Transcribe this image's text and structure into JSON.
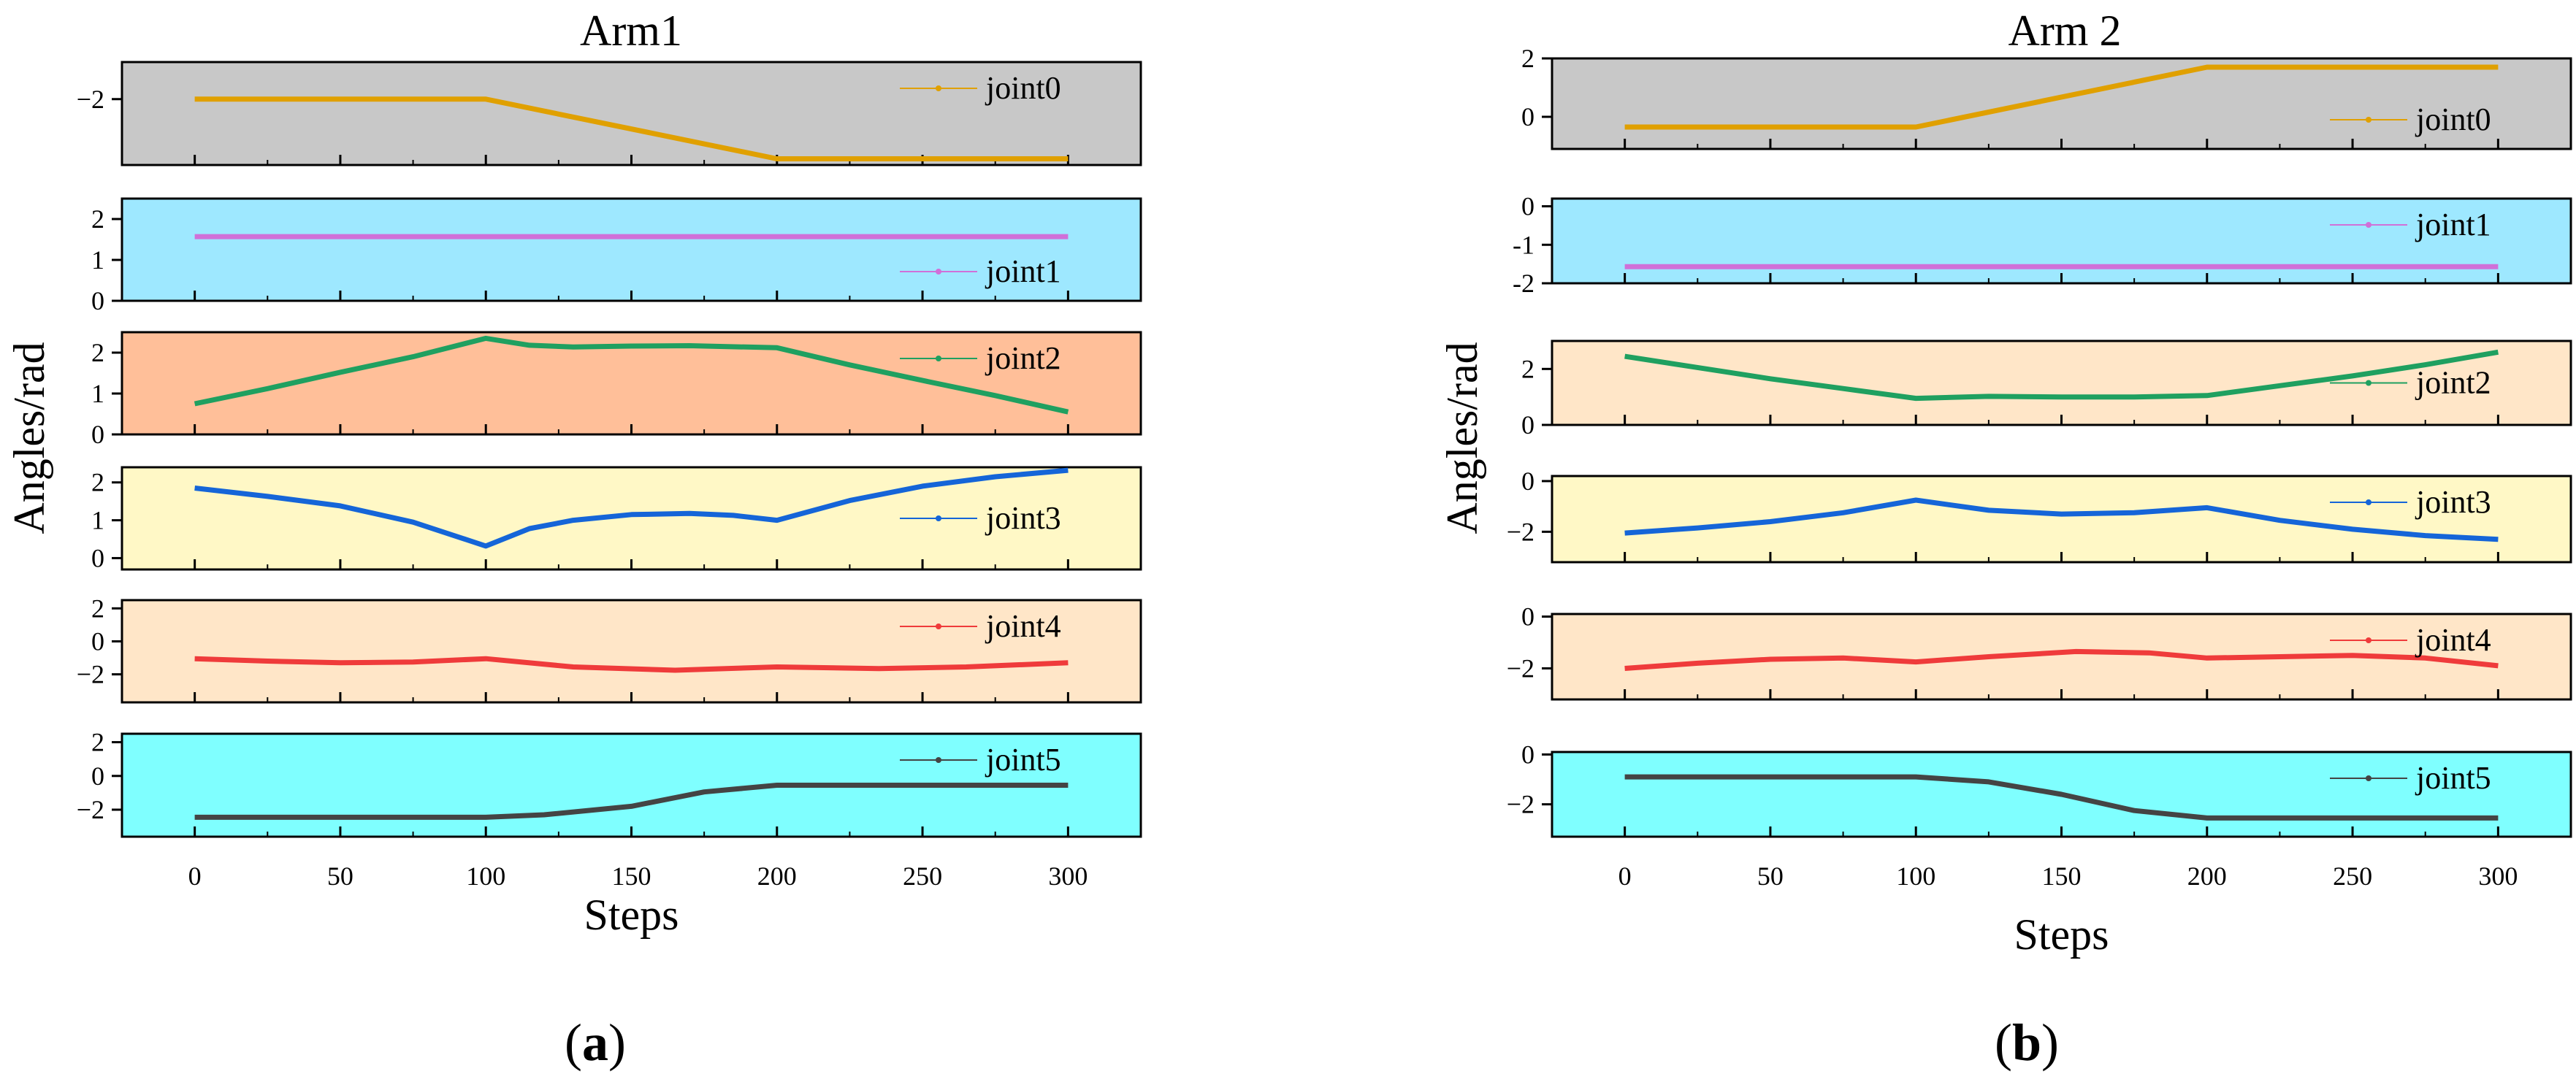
{
  "figure": {
    "captions": [
      {
        "open": "(",
        "letter": "a",
        "close": ")"
      },
      {
        "open": "(",
        "letter": "b",
        "close": ")"
      }
    ],
    "ylabel": "Angles/rad",
    "xlabel": "Steps"
  },
  "chart_data": [
    {
      "type": "line",
      "title": "Arm1",
      "xlabel": "Steps",
      "ylabel": "Angles/rad",
      "xlim": [
        -25,
        325
      ],
      "xticks": [
        0,
        50,
        100,
        150,
        200,
        250,
        300
      ],
      "xtick_labels": [
        "0",
        "50",
        "100",
        "150",
        "200",
        "250",
        "300"
      ],
      "subplots": [
        {
          "joint": "joint0",
          "color": "#E0A000",
          "bg": "#C8C8C8",
          "ylim": [
            -3.6,
            -1.1
          ],
          "yticks": [
            -2
          ],
          "ytick_labels": [
            "−2"
          ],
          "legend": "top-right",
          "x": [
            0,
            100,
            200,
            300
          ],
          "y": [
            -2.0,
            -2.0,
            -3.45,
            -3.45
          ]
        },
        {
          "joint": "joint1",
          "color": "#D070D8",
          "bg": "#9EE8FF",
          "ylim": [
            0,
            2.5
          ],
          "yticks": [
            0,
            1,
            2
          ],
          "ytick_labels": [
            "0",
            "1",
            "2"
          ],
          "legend": "bottom-right",
          "x": [
            0,
            300
          ],
          "y": [
            1.57,
            1.57
          ]
        },
        {
          "joint": "joint2",
          "color": "#1FA060",
          "bg": "#FFBF99",
          "ylim": [
            0,
            2.5
          ],
          "yticks": [
            0,
            1,
            2
          ],
          "ytick_labels": [
            "0",
            "1",
            "2"
          ],
          "legend": "top-right",
          "x": [
            0,
            25,
            50,
            75,
            100,
            115,
            130,
            150,
            170,
            200,
            225,
            250,
            275,
            300
          ],
          "y": [
            0.75,
            1.12,
            1.52,
            1.9,
            2.35,
            2.18,
            2.14,
            2.16,
            2.17,
            2.12,
            1.7,
            1.32,
            0.95,
            0.55
          ]
        },
        {
          "joint": "joint3",
          "color": "#1565D8",
          "bg": "#FFF8C6",
          "ylim": [
            -0.3,
            2.4
          ],
          "yticks": [
            0,
            1,
            2
          ],
          "ytick_labels": [
            "0",
            "1",
            "2"
          ],
          "legend": "right",
          "x": [
            0,
            25,
            50,
            75,
            100,
            115,
            130,
            150,
            170,
            185,
            200,
            225,
            250,
            275,
            300
          ],
          "y": [
            1.85,
            1.63,
            1.38,
            0.95,
            0.32,
            0.78,
            1.0,
            1.15,
            1.18,
            1.13,
            1.0,
            1.52,
            1.9,
            2.15,
            2.32
          ]
        },
        {
          "joint": "joint4",
          "color": "#EF3B3B",
          "bg": "#FFE6C8",
          "ylim": [
            -3.7,
            2.5
          ],
          "yticks": [
            -2,
            0,
            2
          ],
          "ytick_labels": [
            "−2",
            "0",
            "2"
          ],
          "legend": "top-right",
          "x": [
            0,
            25,
            50,
            75,
            100,
            130,
            165,
            200,
            235,
            265,
            300
          ],
          "y": [
            -1.05,
            -1.2,
            -1.3,
            -1.25,
            -1.05,
            -1.55,
            -1.75,
            -1.55,
            -1.65,
            -1.55,
            -1.3
          ]
        },
        {
          "joint": "joint5",
          "color": "#444444",
          "bg": "#7FFFFF",
          "ylim": [
            -3.6,
            2.5
          ],
          "yticks": [
            -2,
            0,
            2
          ],
          "ytick_labels": [
            "−2",
            "0",
            "2"
          ],
          "legend": "top-right",
          "x": [
            0,
            100,
            120,
            150,
            175,
            200,
            300
          ],
          "y": [
            -2.45,
            -2.45,
            -2.3,
            -1.8,
            -0.95,
            -0.55,
            -0.55
          ]
        }
      ]
    },
    {
      "type": "line",
      "title": "Arm 2",
      "xlabel": "Steps",
      "ylabel": "Angles/rad",
      "xlim": [
        -25,
        325
      ],
      "xticks": [
        0,
        50,
        100,
        150,
        200,
        250,
        300
      ],
      "xtick_labels": [
        "0",
        "50",
        "100",
        "150",
        "200",
        "250",
        "300"
      ],
      "subplots": [
        {
          "joint": "joint0",
          "color": "#E0A000",
          "bg": "#C8C8C8",
          "ylim": [
            -1.1,
            2.0
          ],
          "yticks": [
            0,
            2
          ],
          "ytick_labels": [
            "0",
            "2"
          ],
          "legend": "bottom-right",
          "x": [
            0,
            100,
            200,
            300
          ],
          "y": [
            -0.35,
            -0.35,
            1.7,
            1.7
          ]
        },
        {
          "joint": "joint1",
          "color": "#D070D8",
          "bg": "#9EE8FF",
          "ylim": [
            -2.0,
            0.2
          ],
          "yticks": [
            -2,
            -1,
            0
          ],
          "ytick_labels": [
            "-2",
            "-1",
            "0"
          ],
          "legend": "top-right",
          "x": [
            0,
            300
          ],
          "y": [
            -1.57,
            -1.57
          ]
        },
        {
          "joint": "joint2",
          "color": "#1FA060",
          "bg": "#FFE6C8",
          "ylim": [
            0,
            3.0
          ],
          "yticks": [
            0,
            2
          ],
          "ytick_labels": [
            "0",
            "2"
          ],
          "legend": "right",
          "x": [
            0,
            25,
            50,
            75,
            100,
            125,
            150,
            175,
            200,
            225,
            250,
            275,
            300
          ],
          "y": [
            2.45,
            2.05,
            1.65,
            1.3,
            0.95,
            1.02,
            1.0,
            1.0,
            1.05,
            1.4,
            1.75,
            2.15,
            2.6
          ]
        },
        {
          "joint": "joint3",
          "color": "#1565D8",
          "bg": "#FFF8C6",
          "ylim": [
            -3.2,
            0.2
          ],
          "yticks": [
            -2,
            0
          ],
          "ytick_labels": [
            "−2",
            "0"
          ],
          "legend": "top-right",
          "x": [
            0,
            25,
            50,
            75,
            100,
            125,
            150,
            175,
            200,
            225,
            250,
            275,
            300
          ],
          "y": [
            -2.05,
            -1.85,
            -1.6,
            -1.25,
            -0.75,
            -1.15,
            -1.3,
            -1.25,
            -1.05,
            -1.55,
            -1.9,
            -2.15,
            -2.3
          ]
        },
        {
          "joint": "joint4",
          "color": "#EF3B3B",
          "bg": "#FFE6C8",
          "ylim": [
            -3.2,
            0.1
          ],
          "yticks": [
            -2,
            0
          ],
          "ytick_labels": [
            "−2",
            "0"
          ],
          "legend": "top-right",
          "x": [
            0,
            25,
            50,
            75,
            100,
            125,
            155,
            180,
            200,
            225,
            250,
            275,
            300
          ],
          "y": [
            -2.0,
            -1.8,
            -1.65,
            -1.6,
            -1.75,
            -1.55,
            -1.35,
            -1.4,
            -1.6,
            -1.55,
            -1.5,
            -1.6,
            -1.9
          ]
        },
        {
          "joint": "joint5",
          "color": "#444444",
          "bg": "#7FFFFF",
          "ylim": [
            -3.3,
            0.1
          ],
          "yticks": [
            -2,
            0
          ],
          "ytick_labels": [
            "−2",
            "0"
          ],
          "legend": "top-right",
          "x": [
            0,
            100,
            125,
            150,
            175,
            200,
            300
          ],
          "y": [
            -0.9,
            -0.9,
            -1.1,
            -1.6,
            -2.25,
            -2.55,
            -2.55
          ]
        }
      ]
    }
  ]
}
